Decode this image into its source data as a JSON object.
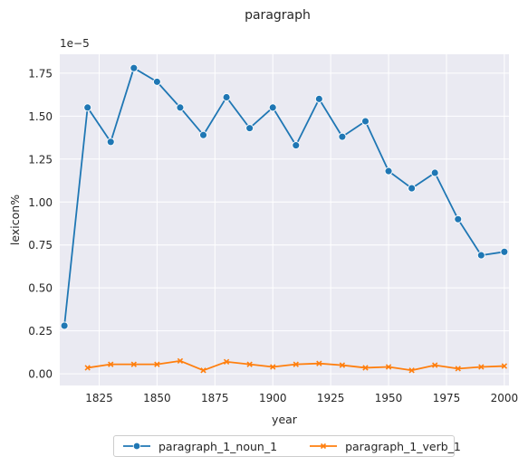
{
  "chart_data": {
    "type": "line",
    "title": "paragraph",
    "xlabel": "year",
    "ylabel": "lexicon%",
    "y_offset_text": "1e−5",
    "xlim": [
      1808,
      2002
    ],
    "ylim": [
      -0.068,
      1.86
    ],
    "x_ticks": [
      1825,
      1850,
      1875,
      1900,
      1925,
      1950,
      1975,
      2000
    ],
    "y_ticks": [
      0.0,
      0.25,
      0.5,
      0.75,
      1.0,
      1.25,
      1.5,
      1.75
    ],
    "y_tick_labels": [
      "0.00",
      "0.25",
      "0.50",
      "0.75",
      "1.00",
      "1.25",
      "1.50",
      "1.75"
    ],
    "grid": true,
    "legend_position": "bottom-center",
    "series": [
      {
        "name": "paragraph_1_noun_1",
        "color": "#1f77b4",
        "marker": "circle",
        "x": [
          1810,
          1820,
          1830,
          1840,
          1850,
          1860,
          1870,
          1880,
          1890,
          1900,
          1910,
          1920,
          1930,
          1940,
          1950,
          1960,
          1970,
          1980,
          1990,
          2000
        ],
        "y": [
          0.28,
          1.55,
          1.35,
          1.78,
          1.7,
          1.55,
          1.39,
          1.61,
          1.43,
          1.55,
          1.33,
          1.6,
          1.38,
          1.47,
          1.18,
          1.08,
          1.17,
          0.9,
          0.69,
          0.71
        ]
      },
      {
        "name": "paragraph_1_verb_1",
        "color": "#ff7f0e",
        "marker": "x",
        "x": [
          1820,
          1830,
          1840,
          1850,
          1860,
          1870,
          1880,
          1890,
          1900,
          1910,
          1920,
          1930,
          1940,
          1950,
          1960,
          1970,
          1980,
          1990,
          2000
        ],
        "y": [
          0.035,
          0.055,
          0.055,
          0.055,
          0.075,
          0.02,
          0.07,
          0.055,
          0.04,
          0.055,
          0.06,
          0.05,
          0.035,
          0.04,
          0.02,
          0.05,
          0.03,
          0.04,
          0.045
        ]
      }
    ]
  }
}
